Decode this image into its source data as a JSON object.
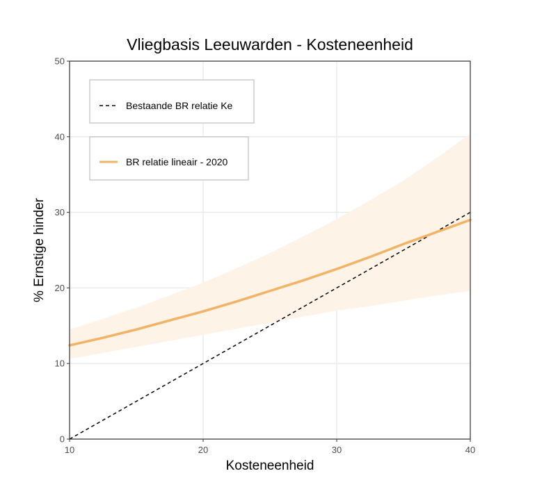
{
  "chart_data": {
    "type": "line",
    "title": "Vliegbasis Leeuwarden - Kosteneenheid",
    "xlabel": "Kosteneenheid",
    "ylabel": "% Ernstige hinder",
    "xlim": [
      10,
      40
    ],
    "ylim": [
      0,
      50
    ],
    "xticks": [
      10,
      20,
      30,
      40
    ],
    "yticks": [
      0,
      10,
      20,
      30,
      40,
      50
    ],
    "grid": true,
    "legend_position": "top-left",
    "series": [
      {
        "name": "Bestaande BR relatie Ke",
        "style": "dashed",
        "color": "#000000",
        "x": [
          10,
          15,
          20,
          25,
          30,
          35,
          40
        ],
        "y": [
          0,
          5,
          10,
          15,
          20,
          25,
          30
        ]
      },
      {
        "name": "BR relatie lineair - 2020",
        "style": "solid",
        "color": "#f2b366",
        "x": [
          10,
          12.5,
          15,
          17.5,
          20,
          22.5,
          25,
          27.5,
          30,
          32.5,
          35,
          37.5,
          40
        ],
        "y": [
          12.4,
          13.4,
          14.5,
          15.7,
          16.9,
          18.2,
          19.6,
          21.0,
          22.5,
          24.1,
          25.8,
          27.4,
          29.0
        ],
        "ci_lower": [
          10.6,
          11.4,
          12.2,
          13.0,
          13.8,
          14.6,
          15.4,
          16.2,
          17.0,
          17.6,
          18.3,
          19.0,
          19.6
        ],
        "ci_upper": [
          14.5,
          15.9,
          17.4,
          19.0,
          20.7,
          22.6,
          24.6,
          26.8,
          29.1,
          31.6,
          34.2,
          37.2,
          40.4
        ],
        "ci_color": "#fdf3e6"
      }
    ]
  }
}
